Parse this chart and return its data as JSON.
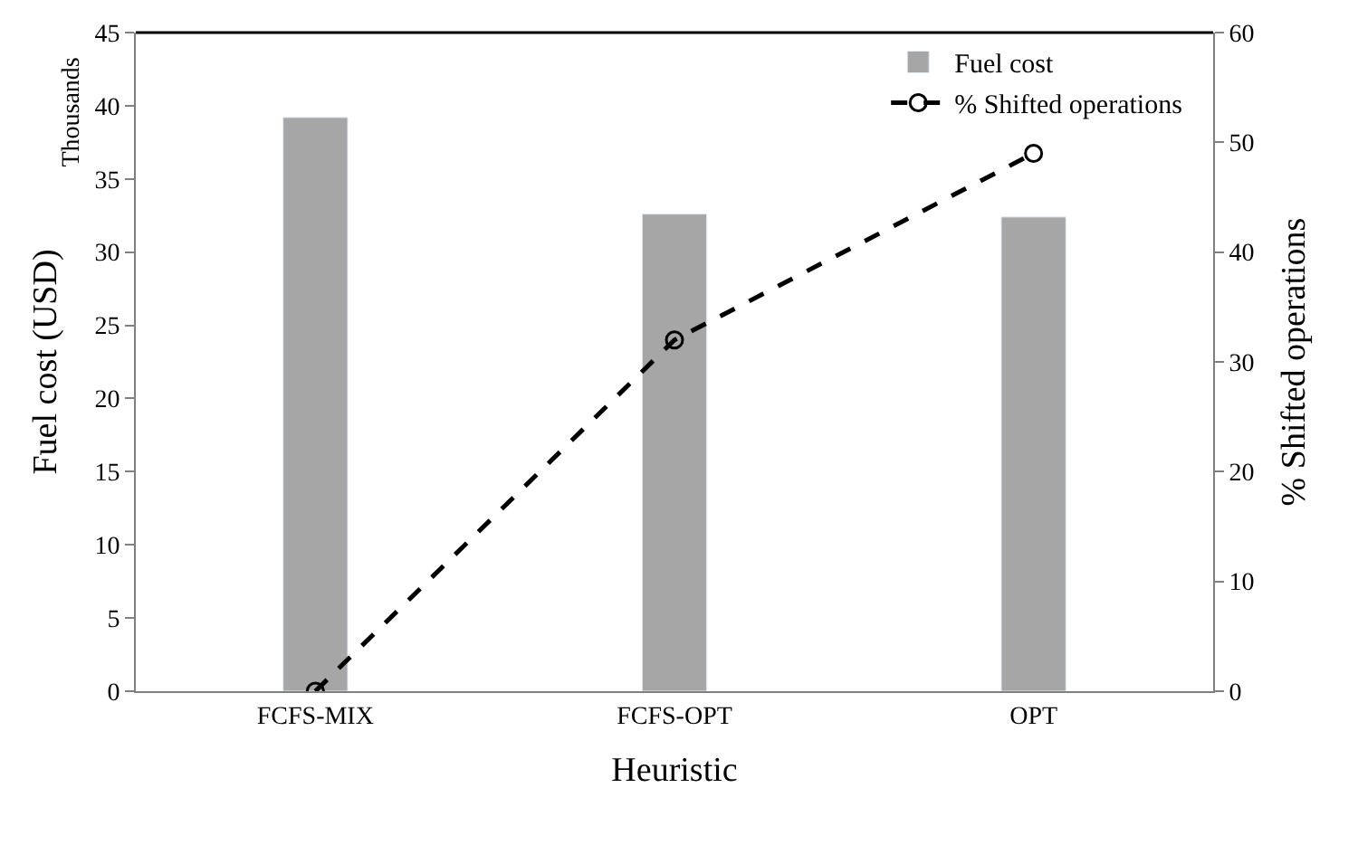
{
  "chart_data": {
    "type": "bar",
    "xlabel": "Heuristic",
    "ylabel": "Fuel cost (USD)",
    "y2label": "% Shifted operations",
    "annotations": [
      "Thousands"
    ],
    "categories": [
      "FCFS-MIX",
      "FCFS-OPT",
      "OPT"
    ],
    "series": [
      {
        "name": "Fuel cost",
        "color": "#a6a6a6",
        "values": [
          39.2,
          32.6,
          32.4
        ]
      },
      {
        "name": "% Shifted operations",
        "type": "line",
        "axis": "y2",
        "color": "#000000",
        "marker": "circle",
        "line_style": "dashed",
        "values": [
          0,
          32,
          49
        ]
      }
    ],
    "ylim": [
      0,
      45
    ],
    "yticks": [
      0,
      5,
      10,
      15,
      20,
      25,
      30,
      35,
      40,
      45
    ],
    "y2lim": [
      0,
      60
    ],
    "y2ticks": [
      0,
      10,
      20,
      30,
      40,
      50,
      60
    ],
    "legend": "top right"
  }
}
